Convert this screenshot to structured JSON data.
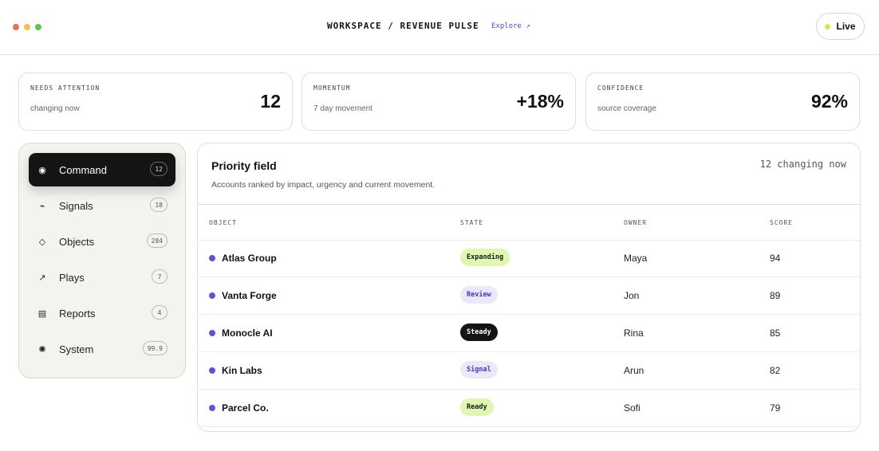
{
  "window": {
    "traffic_lights": [
      "#ec6a5e",
      "#f4bf4f",
      "#61c554"
    ]
  },
  "header": {
    "breadcrumb": "WORKSPACE / REVENUE PULSE",
    "explore_link": "Explore ↗",
    "live_label": "Live",
    "live_dot_color": "#c6f05a"
  },
  "kpis": [
    {
      "label": "NEEDS ATTENTION",
      "sub": "changing now",
      "value": "12"
    },
    {
      "label": "MOMENTUM",
      "sub": "7 day movement",
      "value": "+18%"
    },
    {
      "label": "CONFIDENCE",
      "sub": "source coverage",
      "value": "92%"
    }
  ],
  "sidebar": {
    "items": [
      {
        "label": "Command",
        "count": "12",
        "icon": "radio-dot-icon",
        "glyph": "◉",
        "active": true
      },
      {
        "label": "Signals",
        "count": "18",
        "icon": "pulse-icon",
        "glyph": "⌁",
        "active": false
      },
      {
        "label": "Objects",
        "count": "284",
        "icon": "diamond-icon",
        "glyph": "◇",
        "active": false
      },
      {
        "label": "Plays",
        "count": "7",
        "icon": "arrow-up-right-icon",
        "glyph": "↗",
        "active": false
      },
      {
        "label": "Reports",
        "count": "4",
        "icon": "list-icon",
        "glyph": "▤",
        "active": false
      },
      {
        "label": "System",
        "count": "99.9",
        "icon": "gear-icon",
        "glyph": "✺",
        "active": false
      }
    ]
  },
  "panel": {
    "title": "Priority field",
    "subtitle": "Accounts ranked by impact, urgency and current movement.",
    "changing": "12 changing now",
    "columns": [
      "OBJECT",
      "STATE",
      "OWNER",
      "SCORE"
    ],
    "rows": [
      {
        "object": "Atlas Group",
        "state": "Expanding",
        "owner": "Maya",
        "score": "94",
        "state_bg": "#dff7b0",
        "state_fg": "#1a1a1a"
      },
      {
        "object": "Vanta Forge",
        "state": "Review",
        "owner": "Jon",
        "score": "89",
        "state_bg": "#ece8fb",
        "state_fg": "#4a35b8"
      },
      {
        "object": "Monocle AI",
        "state": "Steady",
        "owner": "Rina",
        "score": "85",
        "state_bg": "#141414",
        "state_fg": "#ffffff"
      },
      {
        "object": "Kin Labs",
        "state": "Signal",
        "owner": "Arun",
        "score": "82",
        "state_bg": "#ece8fb",
        "state_fg": "#4a35b8"
      },
      {
        "object": "Parcel Co.",
        "state": "Ready",
        "owner": "Sofi",
        "score": "79",
        "state_bg": "#dff7b0",
        "state_fg": "#1a1a1a"
      }
    ],
    "bullet_color": "#6a4fd6"
  }
}
